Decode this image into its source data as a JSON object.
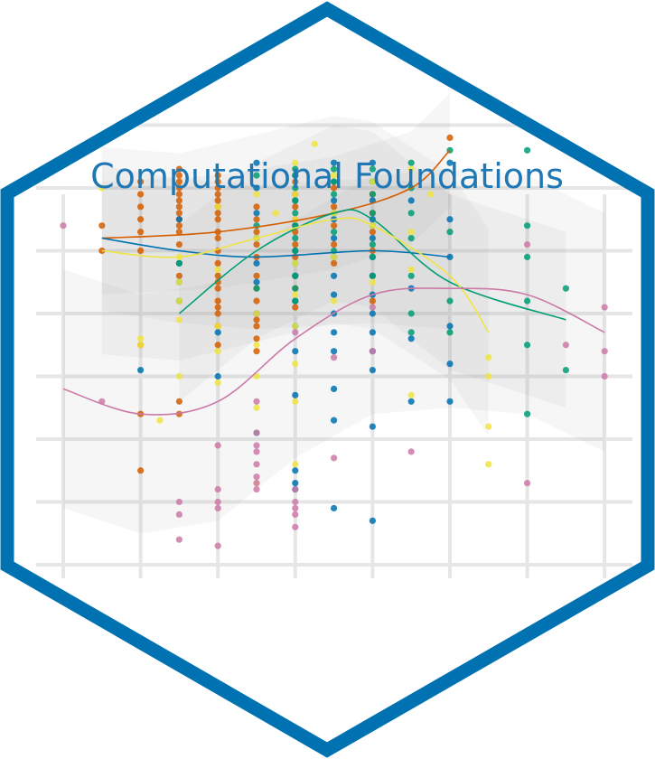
{
  "logo": {
    "title": "Computational Foundations",
    "border_color": "#0072b2",
    "title_color": "#1f78b4",
    "background_color": "#ffffff"
  },
  "chart_data": {
    "type": "scatter",
    "title": "",
    "xlabel": "",
    "ylabel": "",
    "grid": true,
    "legend": "none",
    "xlim": [
      0,
      14
    ],
    "ylim": [
      0,
      7
    ],
    "series": [
      {
        "color": "#d55e00",
        "smooth": [
          [
            1,
            5.2
          ],
          [
            4,
            5.3
          ],
          [
            7,
            5.6
          ],
          [
            9,
            6.0
          ],
          [
            10,
            6.6
          ]
        ],
        "points": [
          [
            1,
            5.4
          ],
          [
            1,
            5.0
          ],
          [
            2,
            6.1
          ],
          [
            2,
            5.9
          ],
          [
            2,
            5.7
          ],
          [
            2,
            5.5
          ],
          [
            2,
            5.3
          ],
          [
            2,
            5.0
          ],
          [
            2,
            3.5
          ],
          [
            2,
            2.4
          ],
          [
            2,
            1.5
          ],
          [
            3,
            6.3
          ],
          [
            3,
            6.2
          ],
          [
            3,
            6.1
          ],
          [
            3,
            6.0
          ],
          [
            3,
            5.9
          ],
          [
            3,
            5.8
          ],
          [
            3,
            5.7
          ],
          [
            3,
            5.6
          ],
          [
            3,
            5.5
          ],
          [
            3,
            5.4
          ],
          [
            3,
            5.3
          ],
          [
            3,
            5.1
          ],
          [
            3,
            4.6
          ],
          [
            3,
            4.2
          ],
          [
            3,
            2.6
          ],
          [
            3,
            2.4
          ],
          [
            4,
            6.2
          ],
          [
            4,
            6.1
          ],
          [
            4,
            6.0
          ],
          [
            4,
            5.9
          ],
          [
            4,
            5.8
          ],
          [
            4,
            5.7
          ],
          [
            4,
            5.6
          ],
          [
            4,
            5.5
          ],
          [
            4,
            5.3
          ],
          [
            4,
            5.2
          ],
          [
            4,
            5.0
          ],
          [
            4,
            4.8
          ],
          [
            4,
            4.6
          ],
          [
            4,
            4.5
          ],
          [
            4,
            4.4
          ],
          [
            4,
            4.2
          ],
          [
            4,
            4.1
          ],
          [
            4,
            4.0
          ],
          [
            4,
            3.8
          ],
          [
            4,
            3.5
          ],
          [
            5,
            5.7
          ],
          [
            5,
            5.5
          ],
          [
            5,
            5.3
          ],
          [
            5,
            5.1
          ],
          [
            5,
            4.9
          ],
          [
            5,
            4.6
          ],
          [
            5,
            4.4
          ],
          [
            5,
            4.2
          ],
          [
            5,
            4.0
          ],
          [
            5,
            3.9
          ],
          [
            5,
            3.8
          ],
          [
            5,
            3.6
          ],
          [
            5,
            3.4
          ],
          [
            6,
            6.1
          ],
          [
            6,
            5.9
          ],
          [
            6,
            5.7
          ],
          [
            6,
            5.5
          ],
          [
            6,
            5.3
          ],
          [
            6,
            5.1
          ],
          [
            6,
            4.9
          ],
          [
            6,
            4.6
          ],
          [
            6,
            4.4
          ],
          [
            6,
            4.1
          ],
          [
            7,
            6.0
          ],
          [
            7,
            5.7
          ],
          [
            7,
            5.4
          ],
          [
            7,
            5.1
          ],
          [
            7,
            4.8
          ],
          [
            8,
            5.9
          ],
          [
            8,
            5.6
          ],
          [
            8,
            5.3
          ],
          [
            8,
            5.0
          ],
          [
            8,
            4.6
          ],
          [
            8,
            4.2
          ],
          [
            10,
            6.8
          ]
        ]
      },
      {
        "color": "#0072b2",
        "smooth": [
          [
            1,
            5.2
          ],
          [
            3,
            5.0
          ],
          [
            5,
            4.9
          ],
          [
            8,
            5.0
          ],
          [
            10,
            4.9
          ]
        ],
        "points": [
          [
            2,
            3.1
          ],
          [
            3,
            5.5
          ],
          [
            3,
            4.8
          ],
          [
            4,
            3.7
          ],
          [
            4,
            3.0
          ],
          [
            5,
            6.4
          ],
          [
            5,
            6.0
          ],
          [
            5,
            5.6
          ],
          [
            5,
            5.2
          ],
          [
            5,
            4.8
          ],
          [
            5,
            4.5
          ],
          [
            5,
            4.0
          ],
          [
            6,
            6.2
          ],
          [
            6,
            5.8
          ],
          [
            6,
            5.4
          ],
          [
            6,
            5.0
          ],
          [
            6,
            4.6
          ],
          [
            6,
            4.2
          ],
          [
            6,
            3.8
          ],
          [
            6,
            3.4
          ],
          [
            6,
            2.7
          ],
          [
            6,
            1.5
          ],
          [
            6,
            1.3
          ],
          [
            6,
            1.2
          ],
          [
            7,
            6.4
          ],
          [
            7,
            6.1
          ],
          [
            7,
            5.8
          ],
          [
            7,
            5.5
          ],
          [
            7,
            5.2
          ],
          [
            7,
            4.9
          ],
          [
            7,
            4.6
          ],
          [
            7,
            4.3
          ],
          [
            7,
            4.0
          ],
          [
            7,
            3.7
          ],
          [
            7,
            3.4
          ],
          [
            7,
            2.8
          ],
          [
            7,
            2.3
          ],
          [
            7,
            0.9
          ],
          [
            8,
            6.4
          ],
          [
            8,
            6.1
          ],
          [
            8,
            5.8
          ],
          [
            8,
            5.5
          ],
          [
            8,
            5.2
          ],
          [
            8,
            4.9
          ],
          [
            8,
            4.6
          ],
          [
            8,
            4.3
          ],
          [
            8,
            4.0
          ],
          [
            8,
            3.7
          ],
          [
            8,
            3.4
          ],
          [
            8,
            3.1
          ],
          [
            8,
            2.2
          ],
          [
            8,
            0.7
          ],
          [
            9,
            5.8
          ],
          [
            9,
            4.4
          ],
          [
            9,
            3.6
          ],
          [
            9,
            2.6
          ],
          [
            10,
            6.4
          ],
          [
            10,
            5.5
          ],
          [
            10,
            4.9
          ],
          [
            10,
            3.8
          ],
          [
            10,
            3.2
          ],
          [
            10,
            2.6
          ]
        ]
      },
      {
        "color": "#009e73",
        "smooth": [
          [
            3,
            4.0
          ],
          [
            5,
            5.0
          ],
          [
            7,
            5.6
          ],
          [
            8,
            5.5
          ],
          [
            10,
            4.5
          ],
          [
            13,
            3.9
          ]
        ],
        "points": [
          [
            3,
            4.8
          ],
          [
            3,
            4.5
          ],
          [
            3,
            4.2
          ],
          [
            5,
            6.2
          ],
          [
            5,
            5.4
          ],
          [
            5,
            4.4
          ],
          [
            5,
            2.1
          ],
          [
            6,
            6.3
          ],
          [
            6,
            6.2
          ],
          [
            6,
            6.0
          ],
          [
            6,
            5.8
          ],
          [
            6,
            5.6
          ],
          [
            6,
            5.4
          ],
          [
            6,
            5.2
          ],
          [
            6,
            5.0
          ],
          [
            6,
            4.8
          ],
          [
            6,
            4.6
          ],
          [
            6,
            4.4
          ],
          [
            6,
            4.2
          ],
          [
            7,
            6.3
          ],
          [
            7,
            6.1
          ],
          [
            7,
            5.9
          ],
          [
            7,
            5.6
          ],
          [
            7,
            5.3
          ],
          [
            7,
            5.0
          ],
          [
            8,
            6.3
          ],
          [
            8,
            6.1
          ],
          [
            8,
            5.9
          ],
          [
            8,
            5.6
          ],
          [
            8,
            5.4
          ],
          [
            8,
            5.1
          ],
          [
            8,
            4.9
          ],
          [
            8,
            4.6
          ],
          [
            9,
            6.4
          ],
          [
            9,
            6.0
          ],
          [
            9,
            5.6
          ],
          [
            9,
            5.2
          ],
          [
            9,
            4.6
          ],
          [
            9,
            4.0
          ],
          [
            9,
            3.7
          ],
          [
            10,
            6.6
          ],
          [
            10,
            5.3
          ],
          [
            10,
            4.2
          ],
          [
            10,
            3.7
          ],
          [
            12,
            6.6
          ],
          [
            12,
            5.4
          ],
          [
            12,
            4.9
          ],
          [
            12,
            4.2
          ],
          [
            12,
            3.5
          ],
          [
            12,
            2.4
          ],
          [
            13,
            4.4
          ],
          [
            13,
            3.1
          ]
        ]
      },
      {
        "color": "#f0e442",
        "smooth": [
          [
            1,
            5.0
          ],
          [
            3,
            4.9
          ],
          [
            5,
            5.2
          ],
          [
            7,
            5.5
          ],
          [
            8,
            5.4
          ],
          [
            10,
            4.6
          ],
          [
            11,
            3.7
          ]
        ],
        "points": [
          [
            1,
            6.0
          ],
          [
            2,
            3.6
          ],
          [
            2,
            3.5
          ],
          [
            3,
            4.9
          ],
          [
            3,
            4.5
          ],
          [
            3,
            4.2
          ],
          [
            3,
            3.9
          ],
          [
            3,
            3.0
          ],
          [
            4,
            5.7
          ],
          [
            4,
            4.7
          ],
          [
            4,
            3.8
          ],
          [
            4,
            3.4
          ],
          [
            4,
            2.9
          ],
          [
            5,
            5.9
          ],
          [
            5,
            5.2
          ],
          [
            5,
            4.0
          ],
          [
            5,
            3.5
          ],
          [
            5,
            3.0
          ],
          [
            5,
            2.5
          ],
          [
            5,
            1.3
          ],
          [
            6,
            6.4
          ],
          [
            6,
            5.9
          ],
          [
            6,
            5.5
          ],
          [
            6,
            4.8
          ],
          [
            6,
            4.3
          ],
          [
            6,
            3.8
          ],
          [
            6,
            3.2
          ],
          [
            6,
            2.6
          ],
          [
            6,
            1.6
          ],
          [
            7,
            6.2
          ],
          [
            7,
            5.6
          ],
          [
            7,
            4.9
          ],
          [
            7,
            4.2
          ],
          [
            8,
            6.1
          ],
          [
            8,
            5.4
          ],
          [
            8,
            4.5
          ],
          [
            9,
            6.3
          ],
          [
            9,
            5.3
          ],
          [
            9,
            4.7
          ],
          [
            9,
            2.7
          ],
          [
            11,
            3.3
          ],
          [
            11,
            3.0
          ],
          [
            11,
            2.2
          ],
          [
            11,
            1.6
          ],
          [
            2.5,
            2.3
          ],
          [
            5.5,
            5.6
          ],
          [
            6.5,
            6.7
          ],
          [
            9.5,
            5.9
          ]
        ]
      },
      {
        "color": "#cc79a7",
        "smooth": [
          [
            0,
            2.8
          ],
          [
            2,
            2.4
          ],
          [
            4,
            2.6
          ],
          [
            6,
            3.6
          ],
          [
            8,
            4.3
          ],
          [
            10,
            4.4
          ],
          [
            12,
            4.3
          ],
          [
            14,
            3.7
          ]
        ],
        "points": [
          [
            0,
            5.4
          ],
          [
            1,
            2.6
          ],
          [
            3,
            1.0
          ],
          [
            3,
            0.8
          ],
          [
            3,
            0.4
          ],
          [
            4,
            1.9
          ],
          [
            4,
            1.2
          ],
          [
            4,
            1.0
          ],
          [
            4,
            0.9
          ],
          [
            4,
            0.3
          ],
          [
            5,
            2.6
          ],
          [
            5,
            2.1
          ],
          [
            5,
            1.9
          ],
          [
            5,
            1.8
          ],
          [
            5,
            1.6
          ],
          [
            5,
            1.4
          ],
          [
            5,
            1.3
          ],
          [
            5,
            1.2
          ],
          [
            6,
            3.7
          ],
          [
            6,
            1.2
          ],
          [
            6,
            1.0
          ],
          [
            6,
            0.9
          ],
          [
            6,
            0.8
          ],
          [
            6,
            0.6
          ],
          [
            7,
            3.3
          ],
          [
            7,
            1.7
          ],
          [
            8,
            4.1
          ],
          [
            8,
            3.4
          ],
          [
            9,
            1.8
          ],
          [
            12,
            5.1
          ],
          [
            12,
            1.3
          ],
          [
            13,
            3.5
          ],
          [
            14,
            4.1
          ],
          [
            14,
            3.4
          ],
          [
            14,
            3.0
          ]
        ]
      }
    ]
  }
}
